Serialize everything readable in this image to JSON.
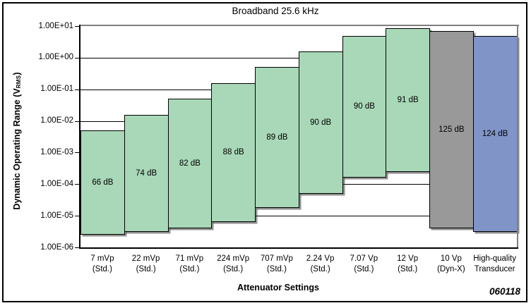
{
  "chart_data": {
    "type": "bar",
    "title": "Broadband 25.6 kHz",
    "xlabel": "Attenuator Settings",
    "ylabel": "Dynamic Operating Range (VRMS)",
    "ylabel_parts": {
      "pre": "Dynamic Operating Range (V",
      "sub": "RMS",
      "post": ")"
    },
    "footer_code": "060118",
    "y_scale": "log",
    "ylim": [
      1e-06,
      10
    ],
    "y_tick_labels": [
      "1.00E+01",
      "1.00E+00",
      "1.00E-01",
      "1.00E-02",
      "1.00E-03",
      "1.00E-04",
      "1.00E-05",
      "1.00E-06"
    ],
    "y_tick_values": [
      10,
      1,
      0.1,
      0.01,
      0.001,
      0.0001,
      1e-05,
      1e-06
    ],
    "grid": "horizontal",
    "legend": "none",
    "colors": {
      "green": "#a8d8b8",
      "gray": "#999999",
      "blue": "#8094c8",
      "frame": "#7f7f7f",
      "axis": "#000000"
    },
    "bars": [
      {
        "category_line1": "7 mVp",
        "category_line2": "(Std.)",
        "top": 0.00495,
        "bottom": 2.48e-06,
        "range_label": "66 dB",
        "color": "green"
      },
      {
        "category_line1": "22 mVp",
        "category_line2": "(Std.)",
        "top": 0.0156,
        "bottom": 3.1e-06,
        "range_label": "74 dB",
        "color": "green"
      },
      {
        "category_line1": "71 mVp",
        "category_line2": "(Std.)",
        "top": 0.05,
        "bottom": 3.99e-06,
        "range_label": "82 dB",
        "color": "green"
      },
      {
        "category_line1": "224 mVp",
        "category_line2": "(Std.)",
        "top": 0.158,
        "bottom": 6.3e-06,
        "range_label": "88 dB",
        "color": "green"
      },
      {
        "category_line1": "707 mVp",
        "category_line2": "(Std.)",
        "top": 0.5,
        "bottom": 1.77e-05,
        "range_label": "89 dB",
        "color": "green"
      },
      {
        "category_line1": "2.24 Vp",
        "category_line2": "(Std.)",
        "top": 1.58,
        "bottom": 5e-05,
        "range_label": "90 dB",
        "color": "green"
      },
      {
        "category_line1": "7.07 Vp",
        "category_line2": "(Std.)",
        "top": 5.0,
        "bottom": 0.000158,
        "range_label": "90 dB",
        "color": "green"
      },
      {
        "category_line1": "12 Vp",
        "category_line2": "(Std.)",
        "top": 8.49,
        "bottom": 0.000239,
        "range_label": "91 dB",
        "color": "green"
      },
      {
        "category_line1": "10 Vp",
        "category_line2": "(Dyn-X)",
        "top": 7.07,
        "bottom": 3.98e-06,
        "range_label": "125 dB",
        "color": "gray"
      },
      {
        "category_line1": "High-quality",
        "category_line2": "Transducer",
        "top": 5.0,
        "bottom": 3.15e-06,
        "range_label": "124 dB",
        "color": "blue"
      }
    ]
  }
}
